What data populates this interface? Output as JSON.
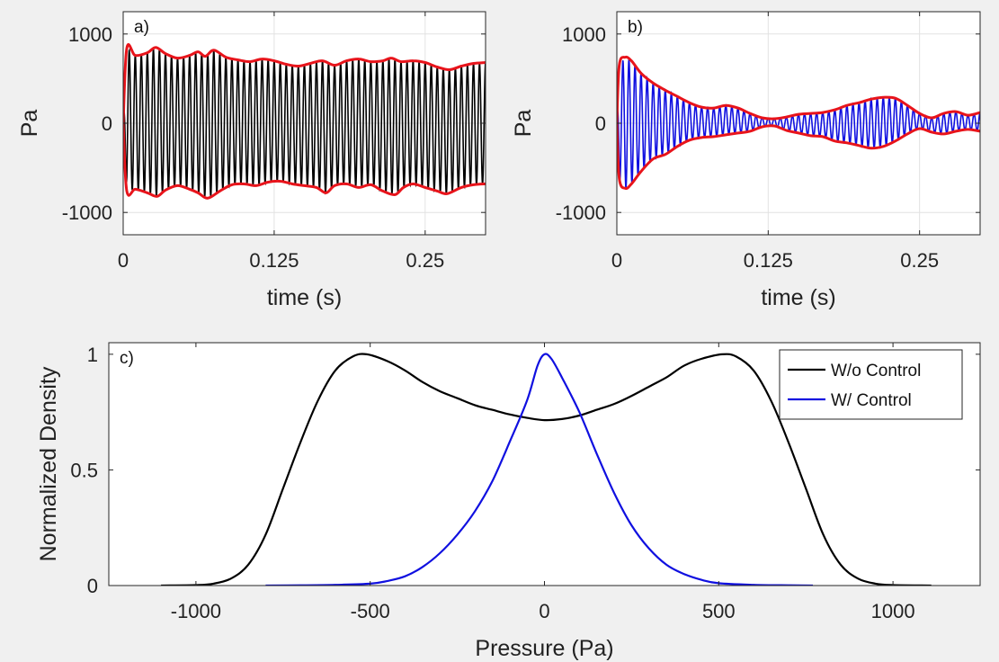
{
  "chart_data": [
    {
      "id": "a",
      "type": "line",
      "panel_label": "a)",
      "xlabel": "time (s)",
      "ylabel": "Pa",
      "xlim": [
        0,
        0.3
      ],
      "ylim": [
        -1250,
        1250
      ],
      "xticks": [
        0,
        0.125,
        0.25
      ],
      "xtick_labels": [
        "0",
        "0.125",
        "0.25"
      ],
      "yticks": [
        1000,
        0,
        -1000
      ],
      "ytick_labels": [
        "1000",
        "0",
        "-1000"
      ],
      "grid": true,
      "signal_color": "#000000",
      "envelope_color": "#e8141b",
      "signal": {
        "frequency_hz": 200,
        "approx_amplitude": 720
      },
      "series": [
        {
          "values": [
            [
              0,
              0
            ],
            [
              0.003,
              840
            ],
            [
              0.01,
              760
            ],
            [
              0.02,
              790
            ],
            [
              0.027,
              850
            ],
            [
              0.035,
              780
            ],
            [
              0.045,
              730
            ],
            [
              0.055,
              760
            ],
            [
              0.062,
              800
            ],
            [
              0.068,
              750
            ],
            [
              0.075,
              820
            ],
            [
              0.085,
              740
            ],
            [
              0.095,
              710
            ],
            [
              0.105,
              690
            ],
            [
              0.115,
              720
            ],
            [
              0.125,
              700
            ],
            [
              0.135,
              660
            ],
            [
              0.145,
              640
            ],
            [
              0.155,
              670
            ],
            [
              0.165,
              700
            ],
            [
              0.175,
              650
            ],
            [
              0.185,
              700
            ],
            [
              0.195,
              720
            ],
            [
              0.205,
              690
            ],
            [
              0.215,
              700
            ],
            [
              0.222,
              730
            ],
            [
              0.23,
              690
            ],
            [
              0.24,
              700
            ],
            [
              0.25,
              680
            ],
            [
              0.26,
              630
            ],
            [
              0.27,
              600
            ],
            [
              0.28,
              640
            ],
            [
              0.29,
              670
            ],
            [
              0.3,
              680
            ]
          ]
        },
        {
          "values": [
            [
              0,
              0
            ],
            [
              0.003,
              -760
            ],
            [
              0.01,
              -740
            ],
            [
              0.02,
              -780
            ],
            [
              0.028,
              -820
            ],
            [
              0.035,
              -750
            ],
            [
              0.045,
              -700
            ],
            [
              0.055,
              -740
            ],
            [
              0.062,
              -780
            ],
            [
              0.07,
              -840
            ],
            [
              0.08,
              -760
            ],
            [
              0.09,
              -690
            ],
            [
              0.1,
              -680
            ],
            [
              0.11,
              -700
            ],
            [
              0.12,
              -660
            ],
            [
              0.13,
              -650
            ],
            [
              0.14,
              -680
            ],
            [
              0.15,
              -700
            ],
            [
              0.16,
              -720
            ],
            [
              0.168,
              -780
            ],
            [
              0.175,
              -700
            ],
            [
              0.185,
              -680
            ],
            [
              0.195,
              -720
            ],
            [
              0.205,
              -690
            ],
            [
              0.215,
              -760
            ],
            [
              0.225,
              -800
            ],
            [
              0.232,
              -720
            ],
            [
              0.24,
              -680
            ],
            [
              0.25,
              -720
            ],
            [
              0.26,
              -760
            ],
            [
              0.268,
              -790
            ],
            [
              0.28,
              -720
            ],
            [
              0.29,
              -690
            ],
            [
              0.3,
              -680
            ]
          ]
        }
      ]
    },
    {
      "id": "b",
      "type": "line",
      "panel_label": "b)",
      "xlabel": "time (s)",
      "ylabel": "Pa",
      "xlim": [
        0,
        0.3
      ],
      "ylim": [
        -1250,
        1250
      ],
      "xticks": [
        0,
        0.125,
        0.25
      ],
      "xtick_labels": [
        "0",
        "0.125",
        "0.25"
      ],
      "yticks": [
        1000,
        0,
        -1000
      ],
      "ytick_labels": [
        "1000",
        "0",
        "-1000"
      ],
      "grid": true,
      "signal_color": "#1010e0",
      "envelope_color": "#e8141b",
      "signal": {
        "frequency_hz": 200,
        "approx_amplitude": 300
      },
      "series": [
        {
          "values": [
            [
              0,
              0
            ],
            [
              0.002,
              650
            ],
            [
              0.007,
              740
            ],
            [
              0.012,
              700
            ],
            [
              0.02,
              560
            ],
            [
              0.03,
              450
            ],
            [
              0.04,
              370
            ],
            [
              0.05,
              300
            ],
            [
              0.06,
              230
            ],
            [
              0.07,
              180
            ],
            [
              0.08,
              170
            ],
            [
              0.09,
              200
            ],
            [
              0.1,
              170
            ],
            [
              0.11,
              110
            ],
            [
              0.12,
              60
            ],
            [
              0.13,
              50
            ],
            [
              0.14,
              70
            ],
            [
              0.15,
              100
            ],
            [
              0.16,
              110
            ],
            [
              0.17,
              120
            ],
            [
              0.18,
              150
            ],
            [
              0.19,
              200
            ],
            [
              0.2,
              230
            ],
            [
              0.21,
              270
            ],
            [
              0.22,
              290
            ],
            [
              0.23,
              280
            ],
            [
              0.24,
              200
            ],
            [
              0.25,
              110
            ],
            [
              0.26,
              60
            ],
            [
              0.27,
              110
            ],
            [
              0.28,
              130
            ],
            [
              0.29,
              90
            ],
            [
              0.3,
              120
            ]
          ]
        },
        {
          "values": [
            [
              0,
              0
            ],
            [
              0.002,
              -620
            ],
            [
              0.007,
              -730
            ],
            [
              0.012,
              -680
            ],
            [
              0.02,
              -540
            ],
            [
              0.03,
              -400
            ],
            [
              0.04,
              -350
            ],
            [
              0.05,
              -260
            ],
            [
              0.06,
              -190
            ],
            [
              0.07,
              -160
            ],
            [
              0.08,
              -150
            ],
            [
              0.09,
              -130
            ],
            [
              0.1,
              -110
            ],
            [
              0.11,
              -90
            ],
            [
              0.12,
              -40
            ],
            [
              0.13,
              -30
            ],
            [
              0.14,
              -80
            ],
            [
              0.15,
              -110
            ],
            [
              0.16,
              -140
            ],
            [
              0.17,
              -150
            ],
            [
              0.18,
              -200
            ],
            [
              0.19,
              -220
            ],
            [
              0.2,
              -250
            ],
            [
              0.21,
              -280
            ],
            [
              0.22,
              -260
            ],
            [
              0.23,
              -200
            ],
            [
              0.24,
              -120
            ],
            [
              0.25,
              -60
            ],
            [
              0.26,
              -100
            ],
            [
              0.27,
              -120
            ],
            [
              0.28,
              -90
            ],
            [
              0.29,
              -70
            ],
            [
              0.3,
              -90
            ]
          ]
        }
      ]
    },
    {
      "id": "c",
      "type": "line",
      "panel_label": "c)",
      "xlabel": "Pressure (Pa)",
      "ylabel": "Normalized Density",
      "xlim": [
        -1250,
        1250
      ],
      "ylim": [
        0,
        1.05
      ],
      "xticks": [
        -1000,
        -500,
        0,
        500,
        1000
      ],
      "xtick_labels": [
        "-1000",
        "-500",
        "0",
        "500",
        "1000"
      ],
      "yticks": [
        0,
        0.5,
        1
      ],
      "ytick_labels": [
        "0",
        "0.5",
        "1"
      ],
      "grid": false,
      "legend_position": "top-right",
      "series": [
        {
          "name": "W/o Control",
          "color": "#000000",
          "values": [
            [
              -1100,
              0
            ],
            [
              -1000,
              0.002
            ],
            [
              -950,
              0.008
            ],
            [
              -900,
              0.03
            ],
            [
              -850,
              0.09
            ],
            [
              -800,
              0.22
            ],
            [
              -750,
              0.42
            ],
            [
              -700,
              0.62
            ],
            [
              -650,
              0.8
            ],
            [
              -600,
              0.93
            ],
            [
              -550,
              0.99
            ],
            [
              -510,
              1.0
            ],
            [
              -450,
              0.97
            ],
            [
              -400,
              0.93
            ],
            [
              -350,
              0.88
            ],
            [
              -300,
              0.84
            ],
            [
              -250,
              0.81
            ],
            [
              -200,
              0.78
            ],
            [
              -150,
              0.76
            ],
            [
              -100,
              0.74
            ],
            [
              -50,
              0.725
            ],
            [
              0,
              0.715
            ],
            [
              50,
              0.72
            ],
            [
              100,
              0.735
            ],
            [
              150,
              0.76
            ],
            [
              200,
              0.785
            ],
            [
              250,
              0.82
            ],
            [
              300,
              0.86
            ],
            [
              350,
              0.9
            ],
            [
              400,
              0.95
            ],
            [
              450,
              0.98
            ],
            [
              510,
              1.0
            ],
            [
              550,
              0.99
            ],
            [
              600,
              0.93
            ],
            [
              650,
              0.8
            ],
            [
              700,
              0.62
            ],
            [
              750,
              0.42
            ],
            [
              800,
              0.22
            ],
            [
              850,
              0.09
            ],
            [
              900,
              0.03
            ],
            [
              950,
              0.008
            ],
            [
              1000,
              0.002
            ],
            [
              1110,
              0
            ]
          ]
        },
        {
          "name": "W/ Control",
          "color": "#1010e0",
          "values": [
            [
              -800,
              0
            ],
            [
              -700,
              0.001
            ],
            [
              -600,
              0.003
            ],
            [
              -500,
              0.008
            ],
            [
              -450,
              0.02
            ],
            [
              -400,
              0.04
            ],
            [
              -350,
              0.08
            ],
            [
              -300,
              0.14
            ],
            [
              -250,
              0.22
            ],
            [
              -200,
              0.32
            ],
            [
              -150,
              0.45
            ],
            [
              -100,
              0.62
            ],
            [
              -50,
              0.8
            ],
            [
              -20,
              0.95
            ],
            [
              0,
              1.0
            ],
            [
              20,
              0.98
            ],
            [
              50,
              0.9
            ],
            [
              100,
              0.75
            ],
            [
              150,
              0.57
            ],
            [
              200,
              0.4
            ],
            [
              250,
              0.26
            ],
            [
              300,
              0.16
            ],
            [
              350,
              0.09
            ],
            [
              400,
              0.05
            ],
            [
              450,
              0.025
            ],
            [
              500,
              0.01
            ],
            [
              600,
              0.003
            ],
            [
              700,
              0.001
            ],
            [
              770,
              0
            ]
          ]
        }
      ]
    }
  ]
}
